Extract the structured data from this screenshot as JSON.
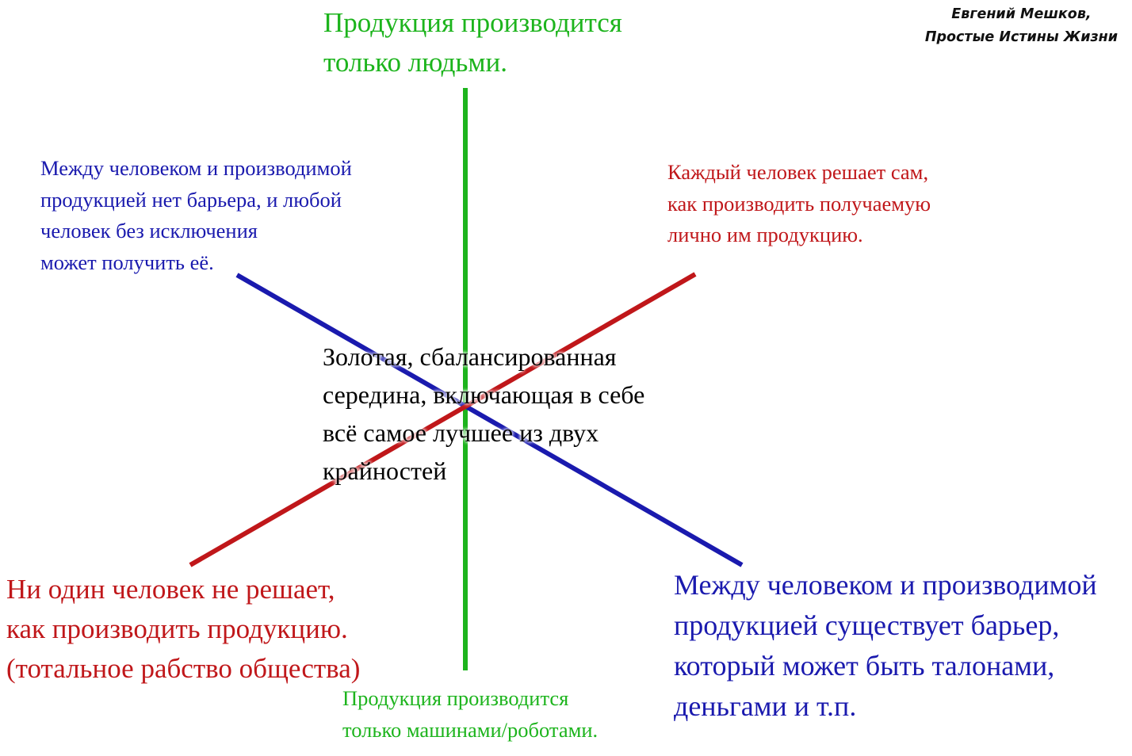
{
  "author": "Евгений Мешков,\nПростые Истины Жизни",
  "colors": {
    "green": "#1db41d",
    "blue": "#1a1aae",
    "red": "#c0171a"
  },
  "axes": {
    "green_top": "Продукция производится\nтолько людьми.",
    "green_bottom": "Продукция производится\nтолько машинами/роботами.",
    "blue_top": "Между человеком и производимой\nпродукцией нет барьера, и любой\nчеловек без исключения\nможет получить её.",
    "blue_bottom": "Между человеком и производимой\nпродукцией существует барьер,\nкоторый может быть талонами,\nденьгами и т.п.",
    "red_top": "Каждый человек решает сам,\nкак производить получаемую\nлично им продукцию.",
    "red_bottom": "Ни один человек не решает,\nкак производить продукцию.\n(тотальное рабство общества)"
  },
  "center": "Золотая, сбалансированная\nсередина, включающая в себе\nвсё самое лучшее из двух\nкрайностей"
}
